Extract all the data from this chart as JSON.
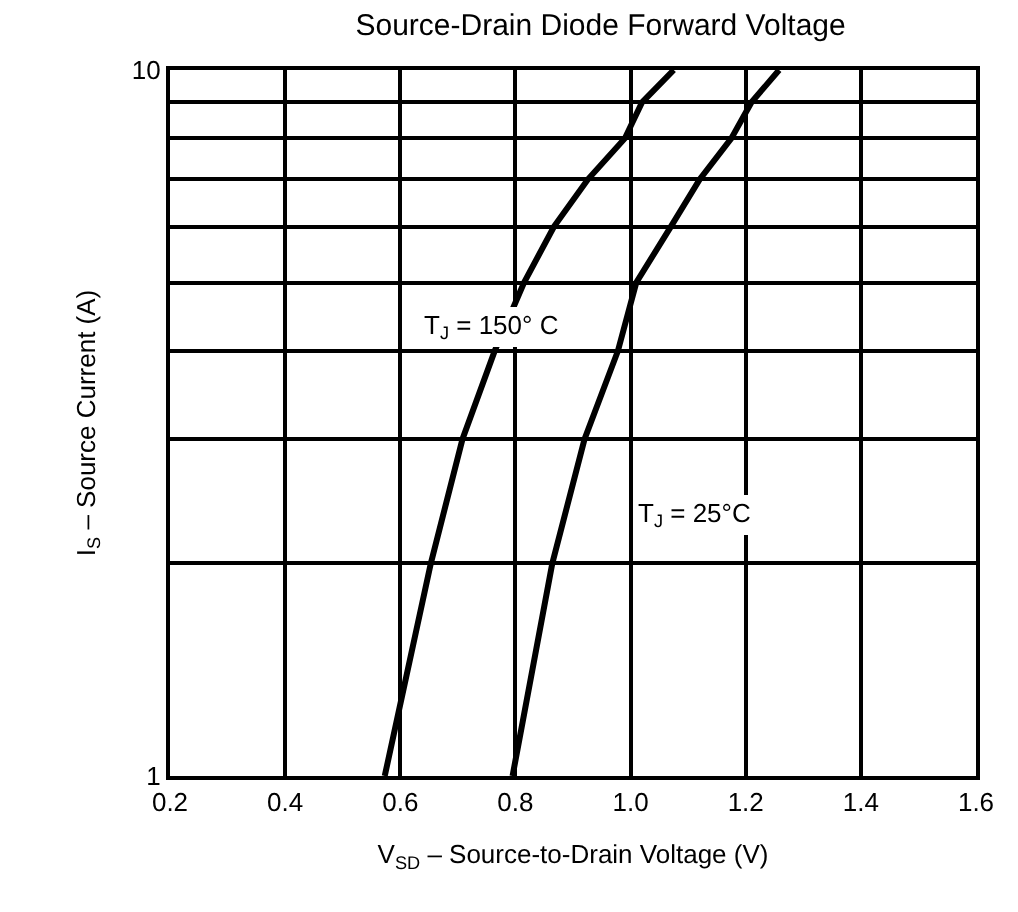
{
  "chart_data": {
    "type": "line",
    "title": "Source-Drain Diode Forward Voltage",
    "xlabel": "V$_{SD}$ – Source-to-Drain Voltage (V)",
    "ylabel": "I$_{S}$ – Source Current (A)",
    "log": "y",
    "grid": true,
    "legend": false,
    "marker": "none",
    "line_style": "solid",
    "xlim": [
      0.2,
      1.6
    ],
    "ylim": [
      1,
      10
    ],
    "xticks": [
      {
        "value": 0.2,
        "label": "0.2"
      },
      {
        "value": 0.4,
        "label": "0.4"
      },
      {
        "value": 0.6,
        "label": "0.6"
      },
      {
        "value": 0.8,
        "label": "0.8"
      },
      {
        "value": 1.0,
        "label": "1.0"
      },
      {
        "value": 1.2,
        "label": "1.2"
      },
      {
        "value": 1.4,
        "label": "1.4"
      },
      {
        "value": 1.6,
        "label": "1.6"
      }
    ],
    "yticks": [
      1,
      {
        "value": 2,
        "label": null
      },
      {
        "value": 3,
        "label": null
      },
      {
        "value": 4,
        "label": null
      },
      {
        "value": 5,
        "label": null
      },
      {
        "value": 6,
        "label": null
      },
      {
        "value": 7,
        "label": null
      },
      {
        "value": 8,
        "label": null
      },
      {
        "value": 9,
        "label": null
      },
      10
    ],
    "series": [
      {
        "name": "T$_{J}$ = 150° C",
        "color": "#000000",
        "x": [
          0.573,
          0.653,
          0.708,
          0.764,
          0.815,
          0.867,
          0.926,
          0.99,
          1.02,
          1.075
        ],
        "values": [
          1,
          2,
          3,
          4,
          5,
          6,
          7,
          8,
          9,
          10
        ]
      },
      {
        "name": "T$_{J}$ = 25°C",
        "color": "#000000",
        "x": [
          0.795,
          0.864,
          0.92,
          0.978,
          1.01,
          1.07,
          1.12,
          1.175,
          1.21,
          1.258
        ],
        "values": [
          1,
          2,
          3,
          4,
          5,
          6,
          7,
          8,
          9,
          10
        ]
      }
    ]
  }
}
